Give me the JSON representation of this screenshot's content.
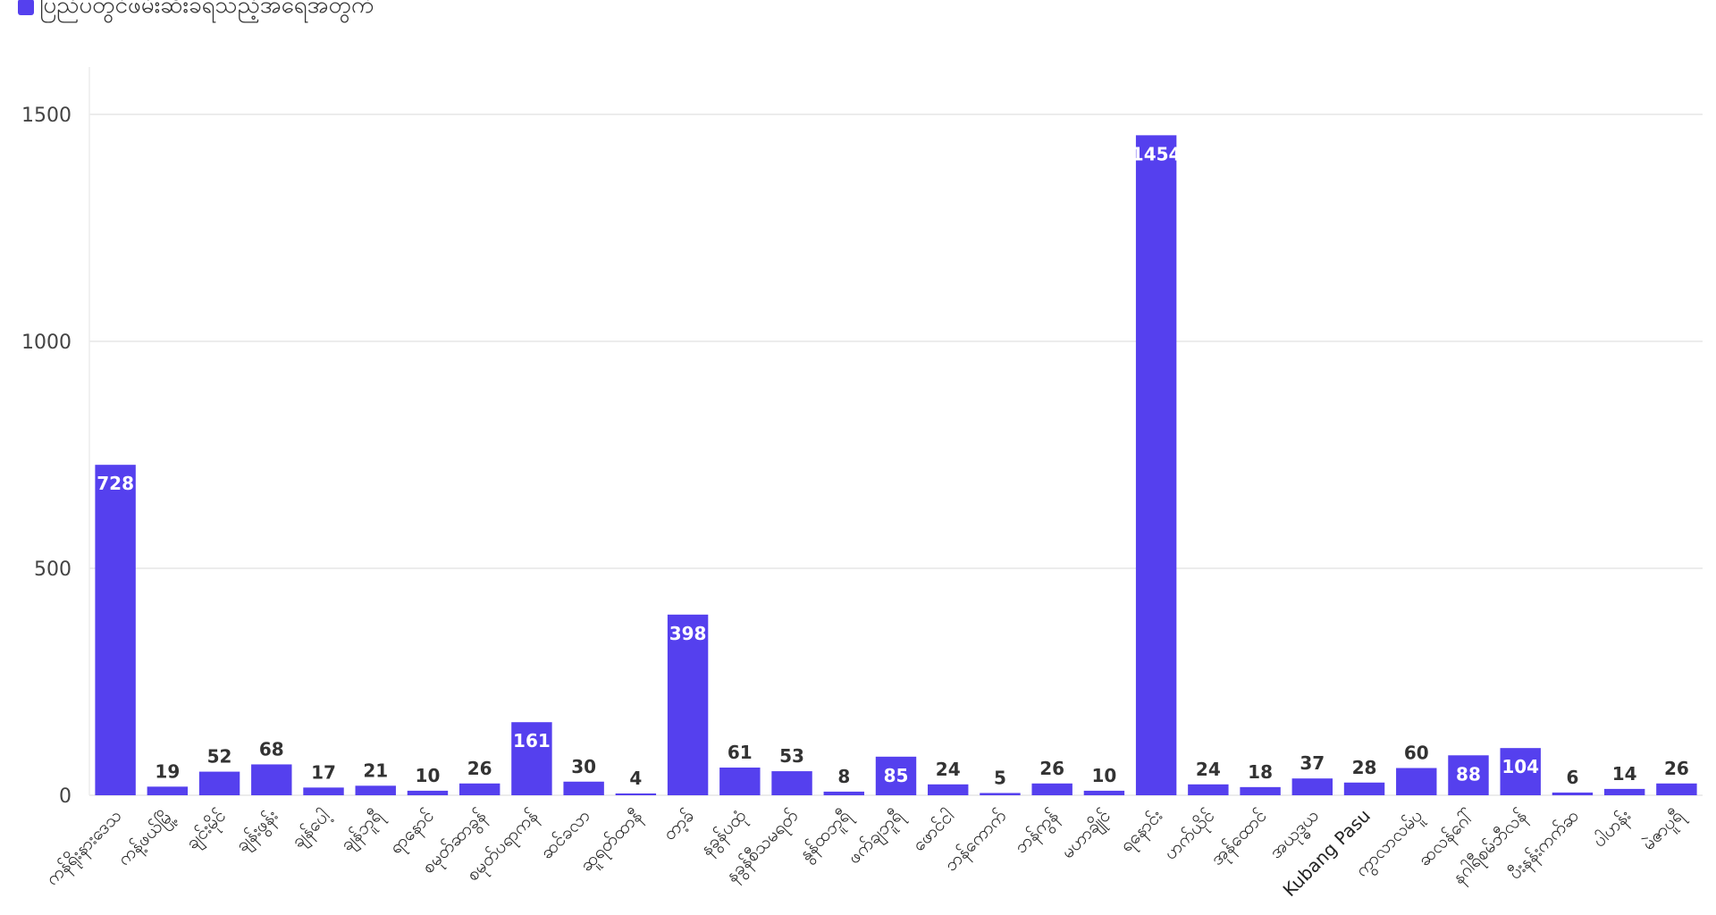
{
  "chart_data": {
    "type": "bar",
    "legend": {
      "label": "ပြည်ပတွင်ဖမ်းဆီးခံရသည့်အရေအတွက်",
      "position": "top-left"
    },
    "categories": [
      "ကန်ရိုးနားဒေသ",
      "ကန့်ဖယ်မြို့",
      "ချင်းမိုင်",
      "ချန်းဖွန်း",
      "ချန်ပေါ့",
      "ချန်ဘူရီ",
      "ရာနောင်",
      "စမုတ်ဆာခွန်",
      "စမုတ်ပရာကန်",
      "ဆင်ခလာ",
      "ဆူရတ်ထာနီ",
      "တာ့ခ်",
      "နခွန်ပထုံ",
      "နခွန်စီသမရတ်",
      "နွန်ထဘူရီ",
      "ဖက်ချဘူရီ",
      "ဖောင်ငါ",
      "ဘန်ကောက်",
      "ဘန်ကွန်",
      "မဟာချိုင်",
      "ရနောင်း",
      "ဟက်ယိုင်",
      "အုန်ထောင်",
      "အယုဒ္ဓယ",
      "Kubang Pasu",
      "ကွာလာလမ်ပူ",
      "ဆလန်ဂေါ်",
      "နဂါရီစမ်ဘီလန်",
      "ပီးနန်းကက်ဆ",
      "ပါဟန်း",
      "မဲဇာပူရီ"
    ],
    "values": [
      728,
      19,
      52,
      68,
      17,
      21,
      10,
      26,
      161,
      30,
      4,
      398,
      61,
      53,
      8,
      85,
      24,
      5,
      26,
      10,
      1454,
      24,
      18,
      37,
      28,
      60,
      88,
      104,
      6,
      14,
      26
    ],
    "ylim": [
      0,
      1600
    ],
    "yticks": [
      0,
      500,
      1000,
      1500
    ],
    "color": "#5540ee",
    "grid": true,
    "inside_label_threshold": 80
  }
}
